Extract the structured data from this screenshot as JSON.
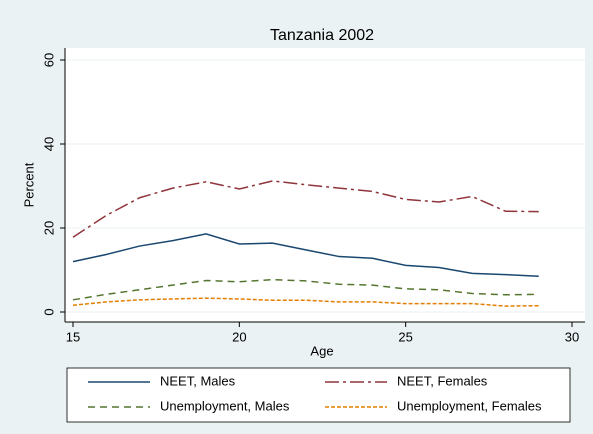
{
  "chart_data": {
    "type": "line",
    "title": "Tanzania 2002",
    "x_label": "Age",
    "y_label": "Percent",
    "x": [
      15,
      16,
      17,
      18,
      19,
      20,
      21,
      22,
      23,
      24,
      25,
      26,
      27,
      28,
      29
    ],
    "series": [
      {
        "name": "NEET, Males",
        "color": "#1a476f",
        "dash": "none",
        "values": [
          12,
          13.7,
          15.7,
          17,
          18.6,
          16.2,
          16.4,
          14.8,
          13.2,
          12.8,
          11.1,
          10.6,
          9.2,
          8.9,
          8.5
        ]
      },
      {
        "name": "NEET, Females",
        "color": "#90353b",
        "dash": "14 4 3 4",
        "values": [
          17.8,
          23,
          27.2,
          29.5,
          31,
          29.3,
          31.2,
          30.3,
          29.5,
          28.7,
          26.8,
          26.2,
          27.5,
          24,
          23.9
        ]
      },
      {
        "name": "Unemployment, Males",
        "color": "#55752f",
        "dash": "7 5",
        "values": [
          2.9,
          4.2,
          5.3,
          6.4,
          7.5,
          7.2,
          7.7,
          7.4,
          6.6,
          6.4,
          5.5,
          5.3,
          4.4,
          4.1,
          4.2
        ]
      },
      {
        "name": "Unemployment, Females",
        "color": "#e37e00",
        "dash": "4 2",
        "values": [
          1.6,
          2.4,
          2.9,
          3.1,
          3.3,
          3.1,
          2.8,
          2.8,
          2.4,
          2.4,
          2,
          2,
          2,
          1.4,
          1.5
        ]
      }
    ],
    "xlim": [
      15,
      30
    ],
    "xticks": [
      15,
      20,
      25,
      30
    ],
    "ylim": [
      0,
      60
    ],
    "yticks": [
      0,
      20,
      40,
      60
    ],
    "grid": true,
    "legend": "bottom"
  }
}
